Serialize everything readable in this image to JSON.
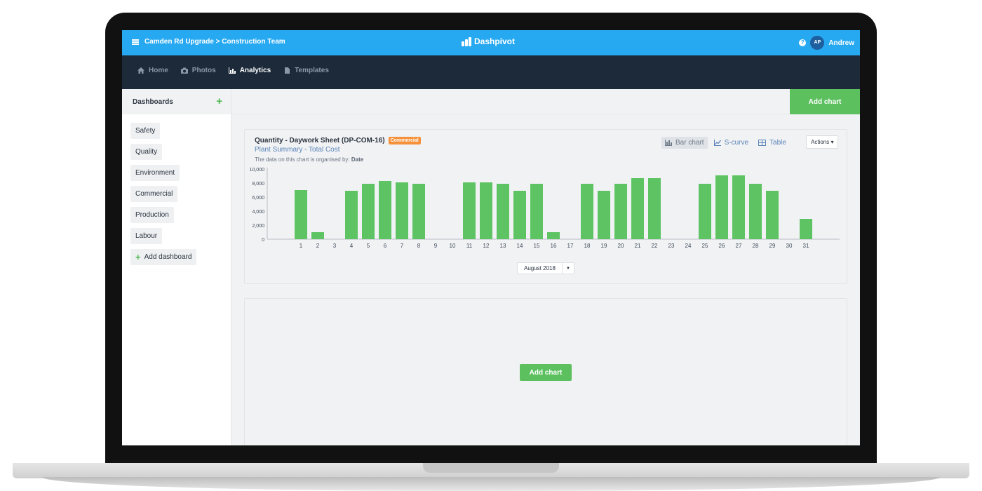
{
  "topbar": {
    "breadcrumb": "Camden Rd Upgrade > Construction Team",
    "logo_text": "Dashpivot",
    "avatar_initials": "AP",
    "user_name": "Andrew"
  },
  "nav": {
    "items": [
      {
        "label": "Home",
        "icon": "home-icon",
        "active": false
      },
      {
        "label": "Photos",
        "icon": "camera-icon",
        "active": false
      },
      {
        "label": "Analytics",
        "icon": "chart-icon",
        "active": true
      },
      {
        "label": "Templates",
        "icon": "file-icon",
        "active": false
      }
    ]
  },
  "sidebar": {
    "title": "Dashboards",
    "items": [
      "Safety",
      "Quality",
      "Environment",
      "Commercial",
      "Production",
      "Labour"
    ],
    "add_label": "Add dashboard"
  },
  "toolbar": {
    "add_chart_label": "Add chart"
  },
  "chart_card": {
    "title": "Quantity - Daywork Sheet (DP-COM-16)",
    "badge": "Commercial",
    "subtitle": "Plant Summary - Total Cost",
    "note_prefix": "The data on this chart is organised by:",
    "note_value": "Date",
    "views": [
      {
        "label": "Bar chart",
        "icon": "bar-chart-icon",
        "active": true
      },
      {
        "label": "S-curve",
        "icon": "line-chart-icon",
        "active": false
      },
      {
        "label": "Table",
        "icon": "table-icon",
        "active": false
      }
    ],
    "actions_label": "Actions",
    "month_value": "August 2018"
  },
  "chart_data": {
    "type": "bar",
    "categories": [
      "1",
      "2",
      "3",
      "4",
      "5",
      "6",
      "7",
      "8",
      "9",
      "10",
      "11",
      "12",
      "13",
      "14",
      "15",
      "16",
      "17",
      "18",
      "19",
      "20",
      "21",
      "22",
      "23",
      "24",
      "25",
      "26",
      "27",
      "28",
      "29",
      "30",
      "31"
    ],
    "values": [
      7000,
      1000,
      0,
      6900,
      7900,
      8300,
      8100,
      7900,
      0,
      0,
      8100,
      8100,
      7900,
      6900,
      7900,
      1000,
      0,
      7900,
      6900,
      7900,
      8700,
      8700,
      0,
      0,
      7900,
      9100,
      9100,
      7900,
      6900,
      0,
      2900
    ],
    "yticks": [
      "0",
      "2,000",
      "4,000",
      "6,000",
      "8,000",
      "10,000"
    ],
    "ylim": [
      0,
      10000
    ],
    "bar_color": "#5ec463"
  },
  "empty_card": {
    "add_chart_label": "Add chart"
  }
}
